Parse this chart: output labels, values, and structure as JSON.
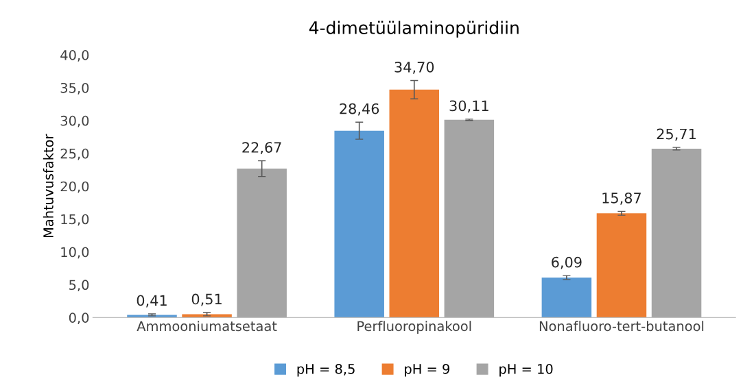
{
  "chart_data": {
    "type": "bar",
    "title": "4-dimetüülaminopüridiin",
    "ylabel": "Mahtuvusfaktor",
    "categories": [
      "Ammooniumatsetaat",
      "Perfluoropinakool",
      "Nonafluoro-tert-butanool"
    ],
    "series": [
      {
        "name": "pH = 8,5",
        "color": "#5b9bd5",
        "values": [
          0.41,
          28.46,
          6.09
        ],
        "errors": [
          0.15,
          1.3,
          0.3
        ],
        "value_labels": [
          "0,41",
          "28,46",
          "6,09"
        ]
      },
      {
        "name": "pH = 9",
        "color": "#ed7d31",
        "values": [
          0.51,
          34.7,
          15.87
        ],
        "errors": [
          0.25,
          1.4,
          0.3
        ],
        "value_labels": [
          "0,51",
          "34,70",
          "15,87"
        ]
      },
      {
        "name": "pH = 10",
        "color": "#a5a5a5",
        "values": [
          22.67,
          30.11,
          25.71
        ],
        "errors": [
          1.2,
          0.1,
          0.2
        ],
        "value_labels": [
          "22,67",
          "30,11",
          "25,71"
        ]
      }
    ],
    "ylim": [
      0,
      40
    ],
    "yticks": [
      {
        "value": 0,
        "label": "0,0"
      },
      {
        "value": 5,
        "label": "5,0"
      },
      {
        "value": 10,
        "label": "10,0"
      },
      {
        "value": 15,
        "label": "15,0"
      },
      {
        "value": 20,
        "label": "20,0"
      },
      {
        "value": 25,
        "label": "25,0"
      },
      {
        "value": 30,
        "label": "30,0"
      },
      {
        "value": 35,
        "label": "35,0"
      },
      {
        "value": 40,
        "label": "40,0"
      }
    ],
    "grid": false,
    "legend": "bottom"
  }
}
